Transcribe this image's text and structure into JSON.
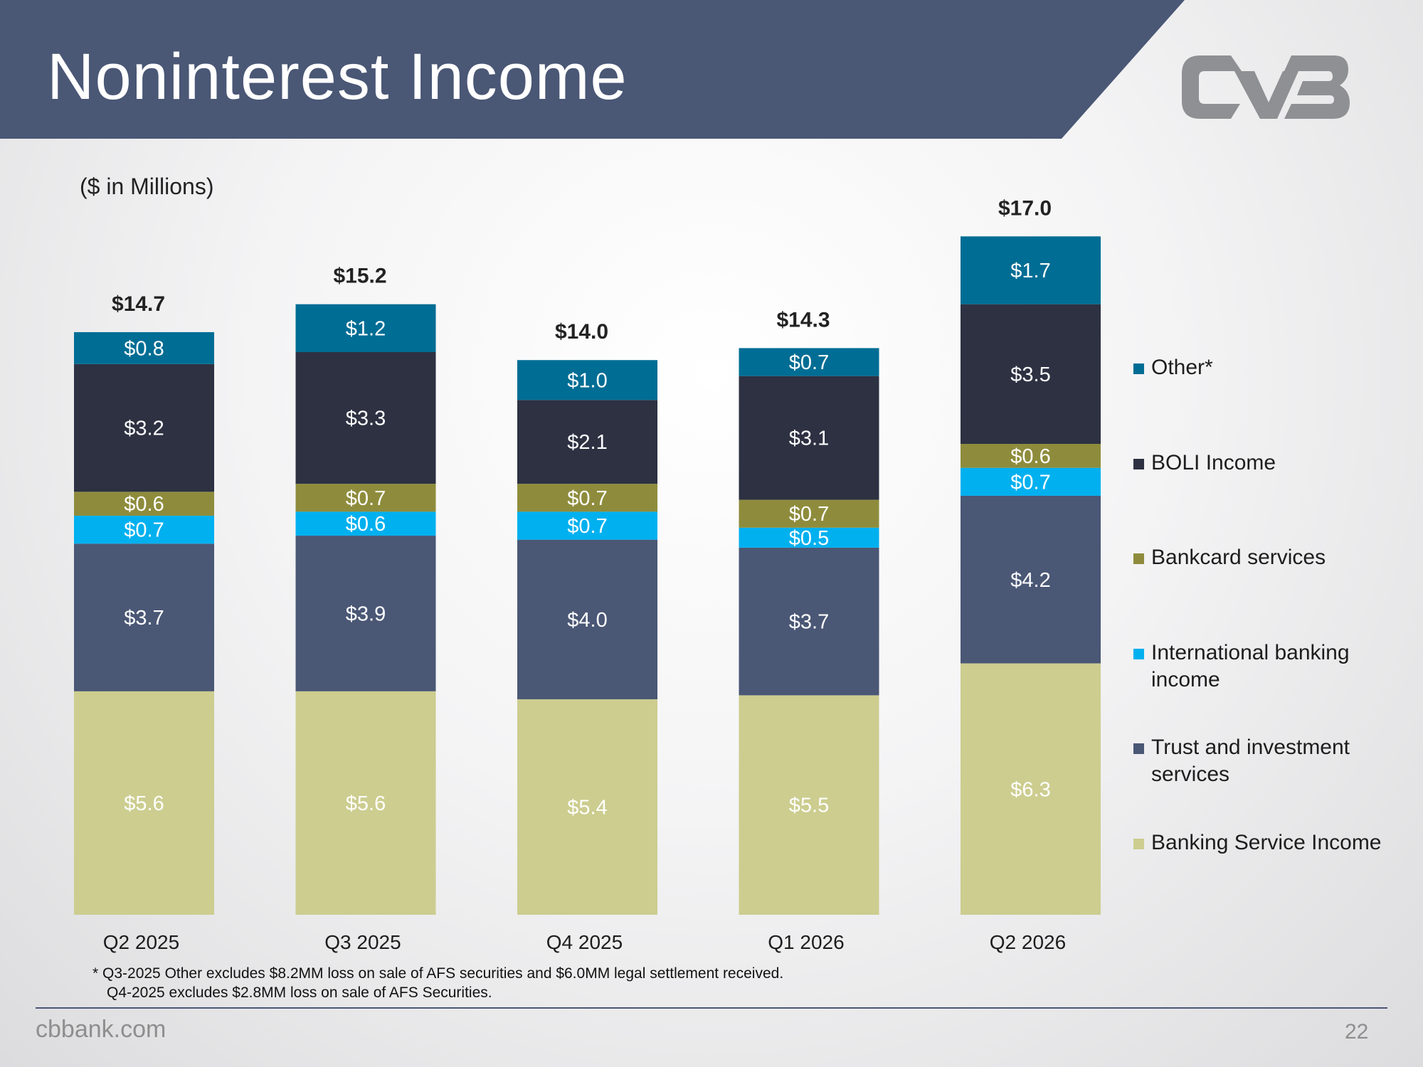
{
  "slide": {
    "title": "Noninterest Income",
    "units_label": "($ in Millions)",
    "footnote_line1": "* Q3-2025 Other excludes $8.2MM loss on sale of AFS securities and $6.0MM legal settlement received.",
    "footnote_line2": "Q4-2025 excludes $2.8MM loss on sale of AFS Securities.",
    "footer_url": "cbbank.com",
    "page_number": "22",
    "logo_icon": "cvb-logo-icon"
  },
  "colors": {
    "banner": "#4a5775",
    "logo": "#8f9093"
  },
  "chart_data": {
    "type": "bar",
    "stacked": true,
    "categories": [
      "Q2 2025",
      "Q3 2025",
      "Q4 2025",
      "Q1 2026",
      "Q2 2026"
    ],
    "totals": [
      14.7,
      15.2,
      14.0,
      14.3,
      17.0
    ],
    "total_labels": [
      "$14.7",
      "$15.2",
      "$14.0",
      "$14.3",
      "$17.0"
    ],
    "series": [
      {
        "name": "Banking Service Income",
        "color": "#cccd8f",
        "values": [
          5.6,
          5.6,
          5.4,
          5.5,
          6.3
        ],
        "labels": [
          "$5.6",
          "$5.6",
          "$5.4",
          "$5.5",
          "$6.3"
        ]
      },
      {
        "name": "Trust and investment services",
        "color": "#4a5775",
        "values": [
          3.7,
          3.9,
          4.0,
          3.7,
          4.2
        ],
        "labels": [
          "$3.7",
          "$3.9",
          "$4.0",
          "$3.7",
          "$4.2"
        ]
      },
      {
        "name": "International banking income",
        "color": "#00b0ef",
        "values": [
          0.7,
          0.6,
          0.7,
          0.5,
          0.7
        ],
        "labels": [
          "$0.7",
          "$0.6",
          "$0.7",
          "$0.5",
          "$0.7"
        ]
      },
      {
        "name": "Bankcard services",
        "color": "#8e8c3c",
        "values": [
          0.6,
          0.7,
          0.7,
          0.7,
          0.6
        ],
        "labels": [
          "$0.6",
          "$0.7",
          "$0.7",
          "$0.7",
          "$0.6"
        ]
      },
      {
        "name": "BOLI Income",
        "color": "#2d3142",
        "values": [
          3.2,
          3.3,
          2.1,
          3.1,
          3.5
        ],
        "labels": [
          "$3.2",
          "$3.3",
          "$2.1",
          "$3.1",
          "$3.5"
        ]
      },
      {
        "name": "Other*",
        "color": "#006d94",
        "values": [
          0.8,
          1.2,
          1.0,
          0.7,
          1.7
        ],
        "labels": [
          "$0.8",
          "$1.2",
          "$1.0",
          "$0.7",
          "$1.7"
        ]
      }
    ],
    "legend_position": "right",
    "grid": false
  }
}
